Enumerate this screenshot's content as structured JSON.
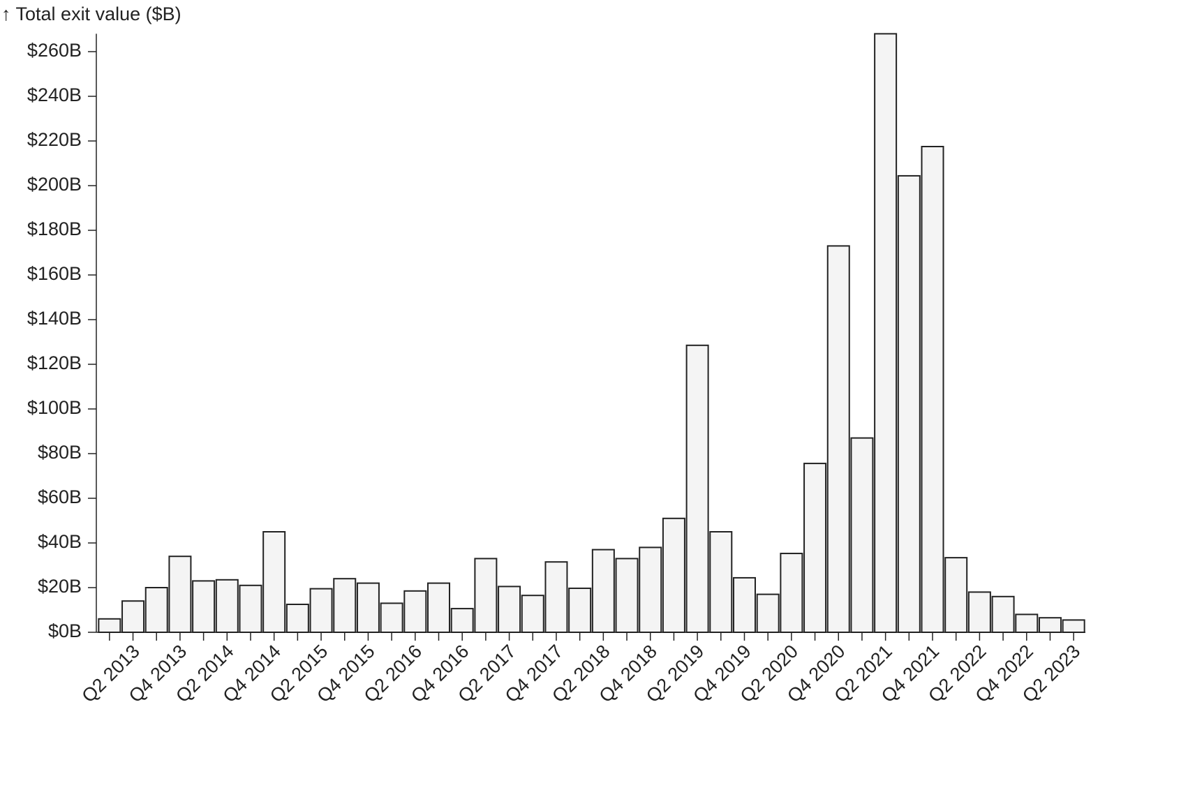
{
  "chart_data": {
    "type": "bar",
    "y_axis_label": "↑ Total exit value ($B)",
    "categories": [
      null,
      "Q2 2013",
      null,
      "Q4 2013",
      null,
      "Q2 2014",
      null,
      "Q4 2014",
      null,
      "Q2 2015",
      null,
      "Q4 2015",
      null,
      "Q2 2016",
      null,
      "Q4 2016",
      null,
      "Q2 2017",
      null,
      "Q4 2017",
      null,
      "Q2 2018",
      null,
      "Q4 2018",
      null,
      "Q2 2019",
      null,
      "Q4 2019",
      null,
      "Q2 2020",
      null,
      "Q4 2020",
      null,
      "Q2 2021",
      null,
      "Q4 2021",
      null,
      "Q2 2022",
      null,
      "Q4 2022",
      null,
      "Q2 2023"
    ],
    "values": [
      6,
      14,
      20,
      34,
      23,
      23.5,
      21,
      45,
      12.5,
      19.5,
      24,
      22,
      13,
      18.5,
      22,
      10.6,
      33,
      20.5,
      16.5,
      31.5,
      19.7,
      37,
      33,
      38,
      51,
      128.5,
      45,
      24.4,
      17,
      35.3,
      75.6,
      173,
      87,
      268,
      204.4,
      217.5,
      33.4,
      18,
      16,
      8,
      6.5,
      5.5
    ],
    "color": "#f4f4f4",
    "stroke": "#222222",
    "ylim": [
      0,
      268
    ],
    "yticks": [
      {
        "value": 0,
        "label": "$0B"
      },
      {
        "value": 20,
        "label": "$20B"
      },
      {
        "value": 40,
        "label": "$40B"
      },
      {
        "value": 60,
        "label": "$60B"
      },
      {
        "value": 80,
        "label": "$80B"
      },
      {
        "value": 100,
        "label": "$100B"
      },
      {
        "value": 120,
        "label": "$120B"
      },
      {
        "value": 140,
        "label": "$140B"
      },
      {
        "value": 160,
        "label": "$160B"
      },
      {
        "value": 180,
        "label": "$180B"
      },
      {
        "value": 200,
        "label": "$200B"
      },
      {
        "value": 220,
        "label": "$220B"
      },
      {
        "value": 240,
        "label": "$240B"
      },
      {
        "value": 260,
        "label": "$260B"
      }
    ],
    "grid": false
  }
}
